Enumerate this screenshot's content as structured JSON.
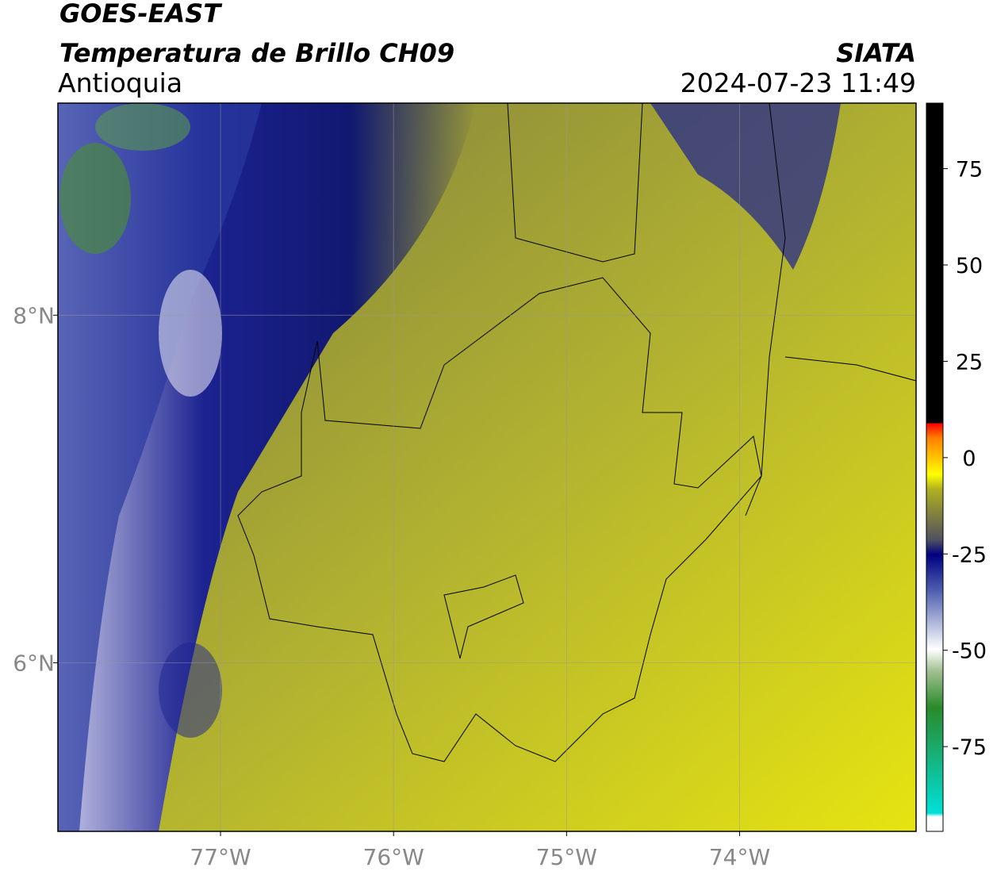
{
  "header": {
    "satellite": "GOES-EAST",
    "product": "Temperatura de Brillo CH09",
    "region": "Antioquia",
    "source": "SIATA",
    "datetime": "2024-07-23 11:49"
  },
  "map": {
    "lonlim": [
      -77.94,
      -72.98
    ],
    "latlim": [
      5.03,
      9.22
    ],
    "lonticks": [
      {
        "value": -77,
        "label": "77°W"
      },
      {
        "value": -76,
        "label": "76°W"
      },
      {
        "value": -75,
        "label": "75°W"
      },
      {
        "value": -74,
        "label": "74°W"
      }
    ],
    "latticks": [
      {
        "value": 8,
        "label": "8°N"
      },
      {
        "value": 6,
        "label": "6°N"
      }
    ],
    "grid": true
  },
  "colorbar": {
    "lim": [
      -97,
      92
    ],
    "ticks": [
      75,
      50,
      25,
      0,
      -25,
      -50,
      -75
    ]
  }
}
